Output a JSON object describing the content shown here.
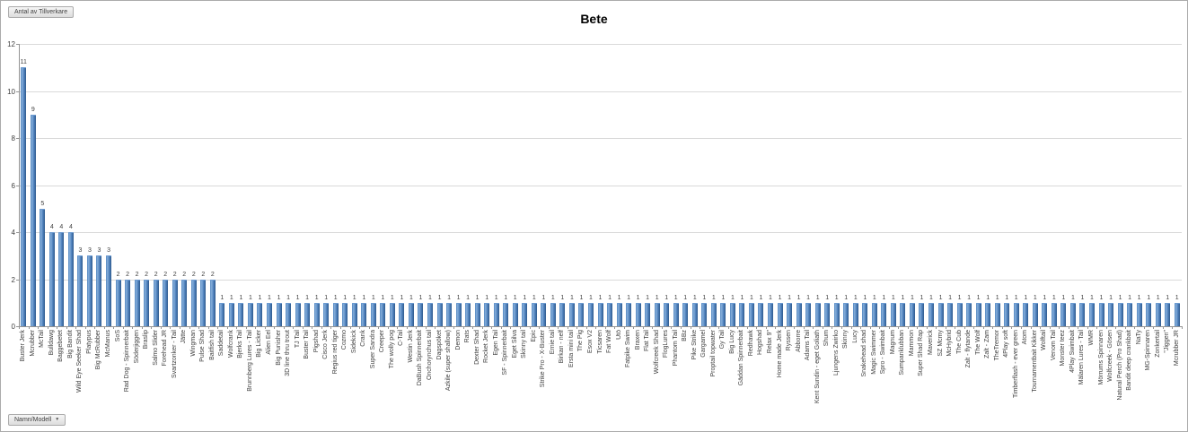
{
  "pivot_buttons": {
    "value_field": "Antal av Tillverkare",
    "axis_field": "Namn/Modell",
    "dropdown_icon": "▼"
  },
  "chart_data": {
    "type": "bar",
    "title": "Bete",
    "xlabel": "",
    "ylabel": "",
    "ylim": [
      0,
      12
    ],
    "yticks": [
      0,
      2,
      4,
      6,
      8,
      10,
      12
    ],
    "grid": true,
    "legend": "none",
    "data_labels": true,
    "bar_color": "#4f81bd",
    "bar_edge_color": "#2f5a8c",
    "gridline_color": "#d9d9d9",
    "axis_color": "#949494",
    "label_color": "#3f3f3f",
    "categories": [
      "Buster Jerk",
      "Mcrubber",
      "McTail",
      "Bulldawg",
      "Baggebetet",
      "Big Bandit",
      "Wild Eye Seeker Shad",
      "Platypus",
      "Big McRubber",
      "McManus",
      "SoS",
      "Rad Dog - Spinnerbait",
      "Söderjiggen",
      "Braslip",
      "Salmo Slider",
      "Forehead JR",
      "Svartzonker - Tail",
      "Jätte",
      "Wingman",
      "Pulse Shad",
      "Baitfish tail",
      "Saddetail",
      "Wolfcrank",
      "Bjerks Tail",
      "Brunnberg Lures - Tail",
      "Big Licker",
      "Alien Eel",
      "Big Punisher",
      "3D line thru trout",
      "TJ Tail",
      "Buster Tail",
      "Pigshad",
      "Cisco Jerk",
      "Regius red tiger",
      "Cozmo",
      "Sidekick",
      "Crank",
      "Super Sandra",
      "Creeper",
      "The wolly pog",
      "C-Tail",
      "Westin Jerk",
      "DaBush Spinnerbait",
      "Onchorynchus tail",
      "Dagspöket",
      "Azkile (super shallow)",
      "Demon",
      "Rats",
      "Dexter Shad",
      "Rocket Jerk",
      "Egen Tail",
      "SF - Spinnerbait",
      "Eget Silva",
      "Skinny tail",
      "Epic",
      "Strike Pro - X-Buster",
      "Ernie tail",
      "Birkan - nelf",
      "Ersta mini tail",
      "The Pig",
      "Esox V2",
      "Ticsaren",
      "Fat Wolf",
      "Utö",
      "Fatpike Swim",
      "Braxen",
      "Flat Tail",
      "Wolfcreek Shad",
      "FlogLures",
      "Phantom Tail",
      "BBz",
      "Pike Strike",
      "Gargamel",
      "Proptail topwater",
      "Gy Tail",
      "Big Lucy",
      "Gäddan Spinnerbait",
      "Redhawk",
      "Hogshad",
      "Relax 9\"",
      "Home made Jerk",
      "Ryssen",
      "Abborre",
      "Adams Tail",
      "Kent Sundin - eget Goliath",
      "Shum",
      "Ljungens Zwirko",
      "Skinny",
      "Lucy",
      "Snakehead shad",
      "Magic Swimmer",
      "Spro - Swimbait",
      "Magnum",
      "Sumpanklubban",
      "Mammon",
      "Super Shad Rap",
      "Maverick",
      "SZ Mcmy",
      "McHybrid",
      "The Cub",
      "Zalt - flytande",
      "The Wolf",
      "Zalt - Zam",
      "TheTremor",
      "4Play soft",
      "Timberflash - ever green",
      "Atom",
      "Tournamentbait Kikker",
      "Wolftail",
      "Venom Tail",
      "Monster teez",
      "4Play Swimbait",
      "Mälaren Lures - Tail",
      "WMR",
      "Mörrums Spinnaren",
      "Wolfcreek - Gösen",
      "Natural Perch (Pro Shad)",
      "Bandit deep crankbait",
      "NaTy",
      "MG-Spinnaren",
      "Zonkertail",
      "\"Jiggen\"",
      "Mcrubber JR"
    ],
    "values": [
      11,
      9,
      5,
      4,
      4,
      4,
      3,
      3,
      3,
      3,
      2,
      2,
      2,
      2,
      2,
      2,
      2,
      2,
      2,
      2,
      2,
      1,
      1,
      1,
      1,
      1,
      1,
      1,
      1,
      1,
      1,
      1,
      1,
      1,
      1,
      1,
      1,
      1,
      1,
      1,
      1,
      1,
      1,
      1,
      1,
      1,
      1,
      1,
      1,
      1,
      1,
      1,
      1,
      1,
      1,
      1,
      1,
      1,
      1,
      1,
      1,
      1,
      1,
      1,
      1,
      1,
      1,
      1,
      1,
      1,
      1,
      1,
      1,
      1,
      1,
      1,
      1,
      1,
      1,
      1,
      1,
      1,
      1,
      1,
      1,
      1,
      1,
      1,
      1,
      1,
      1,
      1,
      1,
      1,
      1,
      1,
      1,
      1,
      1,
      1,
      1,
      1,
      1,
      1,
      1,
      1,
      1,
      1,
      1,
      1,
      1,
      1,
      1,
      1,
      1,
      1,
      1,
      1,
      1,
      1,
      1,
      1,
      1
    ]
  }
}
